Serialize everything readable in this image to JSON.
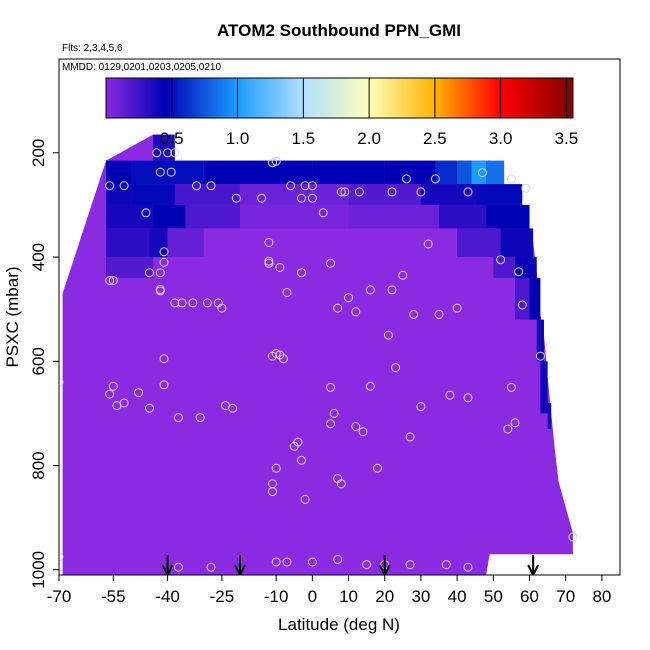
{
  "chart_data": {
    "type": "heatmap",
    "title": "ATOM2 Southbound PPN_GMI",
    "subtitle_lines": [
      "Flts: 2,3,4,5,6",
      "MMDD: 0129,0201,0203,0205,0210"
    ],
    "xlabel": "Latitude (deg N)",
    "ylabel": "PSXC (mbar)",
    "xlim": [
      -70,
      85
    ],
    "ylim": [
      1010,
      20
    ],
    "x_ticks": [
      -70,
      -55,
      -40,
      -25,
      -10,
      0,
      10,
      20,
      30,
      40,
      50,
      60,
      70,
      80
    ],
    "x_tick_labels": [
      "-70",
      "-55",
      "-40",
      "-25",
      "-10",
      "0",
      "10",
      "20",
      "30",
      "40",
      "50",
      "60",
      "70",
      "80"
    ],
    "y_ticks": [
      200,
      400,
      600,
      800,
      1000
    ],
    "y_tick_labels": [
      "200",
      "400",
      "600",
      "800",
      "1000"
    ],
    "colorbar": {
      "range": [
        0,
        3.55
      ],
      "ticks": [
        0.5,
        1.0,
        1.5,
        2.0,
        2.5,
        3.0,
        3.5
      ],
      "tick_labels": [
        "0.5",
        "1.0",
        "1.5",
        "2.0",
        "2.5",
        "3.0",
        "3.5"
      ],
      "stops": [
        {
          "v": 0.0,
          "c": "#8a2be2"
        },
        {
          "v": 0.45,
          "c": "#0000b4"
        },
        {
          "v": 1.0,
          "c": "#1a9cff"
        },
        {
          "v": 1.5,
          "c": "#b3e0ff"
        },
        {
          "v": 2.0,
          "c": "#ffffb8"
        },
        {
          "v": 2.5,
          "c": "#ffb300"
        },
        {
          "v": 3.0,
          "c": "#ff0000"
        },
        {
          "v": 3.55,
          "c": "#800000"
        }
      ]
    },
    "profile": [
      {
        "lat": -69,
        "top": 470,
        "bottom": 1010
      },
      {
        "lat": -57,
        "top": 215,
        "bottom": 1010
      },
      {
        "lat": -44,
        "top": 165,
        "bottom": 1010
      },
      {
        "lat": -38,
        "top": 215,
        "bottom": 1010
      },
      {
        "lat": 48,
        "top": 215,
        "bottom": 1010
      },
      {
        "lat": 49,
        "top": 215,
        "bottom": 970
      },
      {
        "lat": 53,
        "top": 260,
        "bottom": 970
      },
      {
        "lat": 58,
        "top": 300,
        "bottom": 970
      },
      {
        "lat": 60,
        "top": 345,
        "bottom": 970
      },
      {
        "lat": 61,
        "top": 370,
        "bottom": 970
      },
      {
        "lat": 62,
        "top": 430,
        "bottom": 970
      },
      {
        "lat": 63,
        "top": 510,
        "bottom": 970
      },
      {
        "lat": 64,
        "top": 550,
        "bottom": 970
      },
      {
        "lat": 65,
        "top": 630,
        "bottom": 970
      },
      {
        "lat": 66,
        "top": 700,
        "bottom": 970
      },
      {
        "lat": 67,
        "top": 770,
        "bottom": 970
      },
      {
        "lat": 68,
        "top": 830,
        "bottom": 970
      },
      {
        "lat": 70,
        "top": 880,
        "bottom": 970
      },
      {
        "lat": 72,
        "top": 930,
        "bottom": 970
      }
    ],
    "cells": [
      {
        "lat0": -44,
        "lat1": -38,
        "p0": 165,
        "p1": 215,
        "v": 0.35
      },
      {
        "lat0": -57,
        "lat1": -50,
        "p0": 215,
        "p1": 260,
        "v": 0.45
      },
      {
        "lat0": -50,
        "lat1": -30,
        "p0": 215,
        "p1": 260,
        "v": 0.5
      },
      {
        "lat0": -30,
        "lat1": 0,
        "p0": 215,
        "p1": 260,
        "v": 0.45
      },
      {
        "lat0": 0,
        "lat1": 20,
        "p0": 215,
        "p1": 260,
        "v": 0.45
      },
      {
        "lat0": 20,
        "lat1": 34,
        "p0": 215,
        "p1": 260,
        "v": 0.45
      },
      {
        "lat0": 34,
        "lat1": 40,
        "p0": 215,
        "p1": 260,
        "v": 0.6
      },
      {
        "lat0": 40,
        "lat1": 44,
        "p0": 215,
        "p1": 260,
        "v": 0.75
      },
      {
        "lat0": 44,
        "lat1": 48,
        "p0": 215,
        "p1": 260,
        "v": 1.0
      },
      {
        "lat0": 48,
        "lat1": 53,
        "p0": 215,
        "p1": 260,
        "v": 0.85
      },
      {
        "lat0": -57,
        "lat1": -50,
        "p0": 260,
        "p1": 300,
        "v": 0.4
      },
      {
        "lat0": -50,
        "lat1": -38,
        "p0": 260,
        "p1": 300,
        "v": 0.48
      },
      {
        "lat0": -38,
        "lat1": -20,
        "p0": 260,
        "p1": 300,
        "v": 0.22
      },
      {
        "lat0": -20,
        "lat1": 10,
        "p0": 260,
        "p1": 300,
        "v": 0.1
      },
      {
        "lat0": 10,
        "lat1": 30,
        "p0": 260,
        "p1": 300,
        "v": 0.18
      },
      {
        "lat0": 30,
        "lat1": 45,
        "p0": 260,
        "p1": 300,
        "v": 0.38
      },
      {
        "lat0": 45,
        "lat1": 58,
        "p0": 260,
        "p1": 300,
        "v": 0.48
      },
      {
        "lat0": -57,
        "lat1": -44,
        "p0": 300,
        "p1": 345,
        "v": 0.38
      },
      {
        "lat0": -44,
        "lat1": -35,
        "p0": 300,
        "p1": 345,
        "v": 0.45
      },
      {
        "lat0": -35,
        "lat1": -20,
        "p0": 300,
        "p1": 345,
        "v": 0.2
      },
      {
        "lat0": -20,
        "lat1": 10,
        "p0": 300,
        "p1": 345,
        "v": 0.06
      },
      {
        "lat0": 10,
        "lat1": 35,
        "p0": 300,
        "p1": 345,
        "v": 0.1
      },
      {
        "lat0": 35,
        "lat1": 48,
        "p0": 300,
        "p1": 345,
        "v": 0.3
      },
      {
        "lat0": 48,
        "lat1": 60,
        "p0": 300,
        "p1": 345,
        "v": 0.45
      },
      {
        "lat0": -57,
        "lat1": -45,
        "p0": 345,
        "p1": 400,
        "v": 0.3
      },
      {
        "lat0": -45,
        "lat1": -40,
        "p0": 345,
        "p1": 400,
        "v": 0.38
      },
      {
        "lat0": -40,
        "lat1": -30,
        "p0": 345,
        "p1": 400,
        "v": 0.12
      },
      {
        "lat0": 40,
        "lat1": 52,
        "p0": 345,
        "p1": 400,
        "v": 0.2
      },
      {
        "lat0": 52,
        "lat1": 61,
        "p0": 345,
        "p1": 400,
        "v": 0.4
      },
      {
        "lat0": -57,
        "lat1": -44,
        "p0": 400,
        "p1": 440,
        "v": 0.18
      },
      {
        "lat0": 50,
        "lat1": 56,
        "p0": 400,
        "p1": 440,
        "v": 0.2
      },
      {
        "lat0": 56,
        "lat1": 62,
        "p0": 400,
        "p1": 440,
        "v": 0.42
      },
      {
        "lat0": 56,
        "lat1": 60,
        "p0": 440,
        "p1": 520,
        "v": 0.2
      },
      {
        "lat0": 60,
        "lat1": 63,
        "p0": 440,
        "p1": 520,
        "v": 0.45
      },
      {
        "lat0": 62,
        "lat1": 64,
        "p0": 520,
        "p1": 600,
        "v": 0.4
      },
      {
        "lat0": 63,
        "lat1": 65,
        "p0": 600,
        "p1": 700,
        "v": 0.4
      },
      {
        "lat0": 65,
        "lat1": 66,
        "p0": 680,
        "p1": 730,
        "v": 0.4
      }
    ],
    "points": [
      [
        -43,
        200
      ],
      [
        -40,
        200
      ],
      [
        -38,
        200
      ],
      [
        -42,
        237
      ],
      [
        -39,
        237
      ],
      [
        -56,
        263
      ],
      [
        -52,
        263
      ],
      [
        -32,
        263
      ],
      [
        -28,
        263
      ],
      [
        -21,
        287
      ],
      [
        -14,
        287
      ],
      [
        -46,
        315
      ],
      [
        -10,
        216
      ],
      [
        -11,
        219
      ],
      [
        -6,
        263
      ],
      [
        -3,
        287
      ],
      [
        -2,
        263
      ],
      [
        0,
        263
      ],
      [
        0,
        287
      ],
      [
        3,
        315
      ],
      [
        8,
        275
      ],
      [
        9,
        275
      ],
      [
        13,
        275
      ],
      [
        22,
        275
      ],
      [
        26,
        250
      ],
      [
        30,
        275
      ],
      [
        34,
        250
      ],
      [
        43,
        275
      ],
      [
        47,
        238
      ],
      [
        55,
        250
      ],
      [
        59,
        268
      ],
      [
        -41,
        390
      ],
      [
        -41,
        410
      ],
      [
        -42,
        430
      ],
      [
        -45,
        430
      ],
      [
        -56,
        445
      ],
      [
        -55,
        445
      ],
      [
        -42,
        462
      ],
      [
        -42,
        465
      ],
      [
        -38,
        488
      ],
      [
        -36,
        488
      ],
      [
        -33,
        488
      ],
      [
        -29,
        488
      ],
      [
        -26,
        488
      ],
      [
        -25,
        498
      ],
      [
        -12,
        372
      ],
      [
        -12,
        408
      ],
      [
        -12,
        412
      ],
      [
        -9,
        420
      ],
      [
        -7,
        468
      ],
      [
        -3,
        430
      ],
      [
        5,
        412
      ],
      [
        7,
        498
      ],
      [
        10,
        478
      ],
      [
        12,
        505
      ],
      [
        16,
        463
      ],
      [
        22,
        463
      ],
      [
        25,
        435
      ],
      [
        28,
        510
      ],
      [
        32,
        375
      ],
      [
        35,
        510
      ],
      [
        40,
        498
      ],
      [
        52,
        405
      ],
      [
        57,
        428
      ],
      [
        58,
        492
      ],
      [
        63,
        590
      ],
      [
        -70,
        640
      ],
      [
        -55,
        648
      ],
      [
        -56,
        663
      ],
      [
        -54,
        685
      ],
      [
        -52,
        680
      ],
      [
        -48,
        660
      ],
      [
        -45,
        690
      ],
      [
        -41,
        595
      ],
      [
        -41,
        645
      ],
      [
        -37,
        708
      ],
      [
        -31,
        708
      ],
      [
        -24,
        685
      ],
      [
        -22,
        690
      ],
      [
        -11,
        590
      ],
      [
        -10,
        585
      ],
      [
        -9,
        588
      ],
      [
        -8,
        595
      ],
      [
        -10,
        805
      ],
      [
        -11,
        835
      ],
      [
        -11,
        850
      ],
      [
        -5,
        763
      ],
      [
        -4,
        755
      ],
      [
        -3,
        790
      ],
      [
        -2,
        865
      ],
      [
        5,
        650
      ],
      [
        5,
        720
      ],
      [
        6,
        700
      ],
      [
        7,
        825
      ],
      [
        8,
        835
      ],
      [
        12,
        725
      ],
      [
        14,
        735
      ],
      [
        16,
        648
      ],
      [
        18,
        805
      ],
      [
        21,
        550
      ],
      [
        23,
        612
      ],
      [
        27,
        745
      ],
      [
        30,
        687
      ],
      [
        38,
        665
      ],
      [
        43,
        670
      ],
      [
        54,
        730
      ],
      [
        55,
        650
      ],
      [
        56,
        718
      ],
      [
        72,
        937
      ],
      [
        -70,
        975
      ],
      [
        -37,
        995
      ],
      [
        -28,
        995
      ],
      [
        -10,
        985
      ],
      [
        -7,
        985
      ],
      [
        0,
        985
      ],
      [
        7,
        980
      ],
      [
        15,
        990
      ],
      [
        20,
        990
      ],
      [
        27,
        990
      ],
      [
        37,
        990
      ],
      [
        43,
        995
      ]
    ],
    "markers": [
      -40,
      -20,
      20,
      61
    ]
  }
}
